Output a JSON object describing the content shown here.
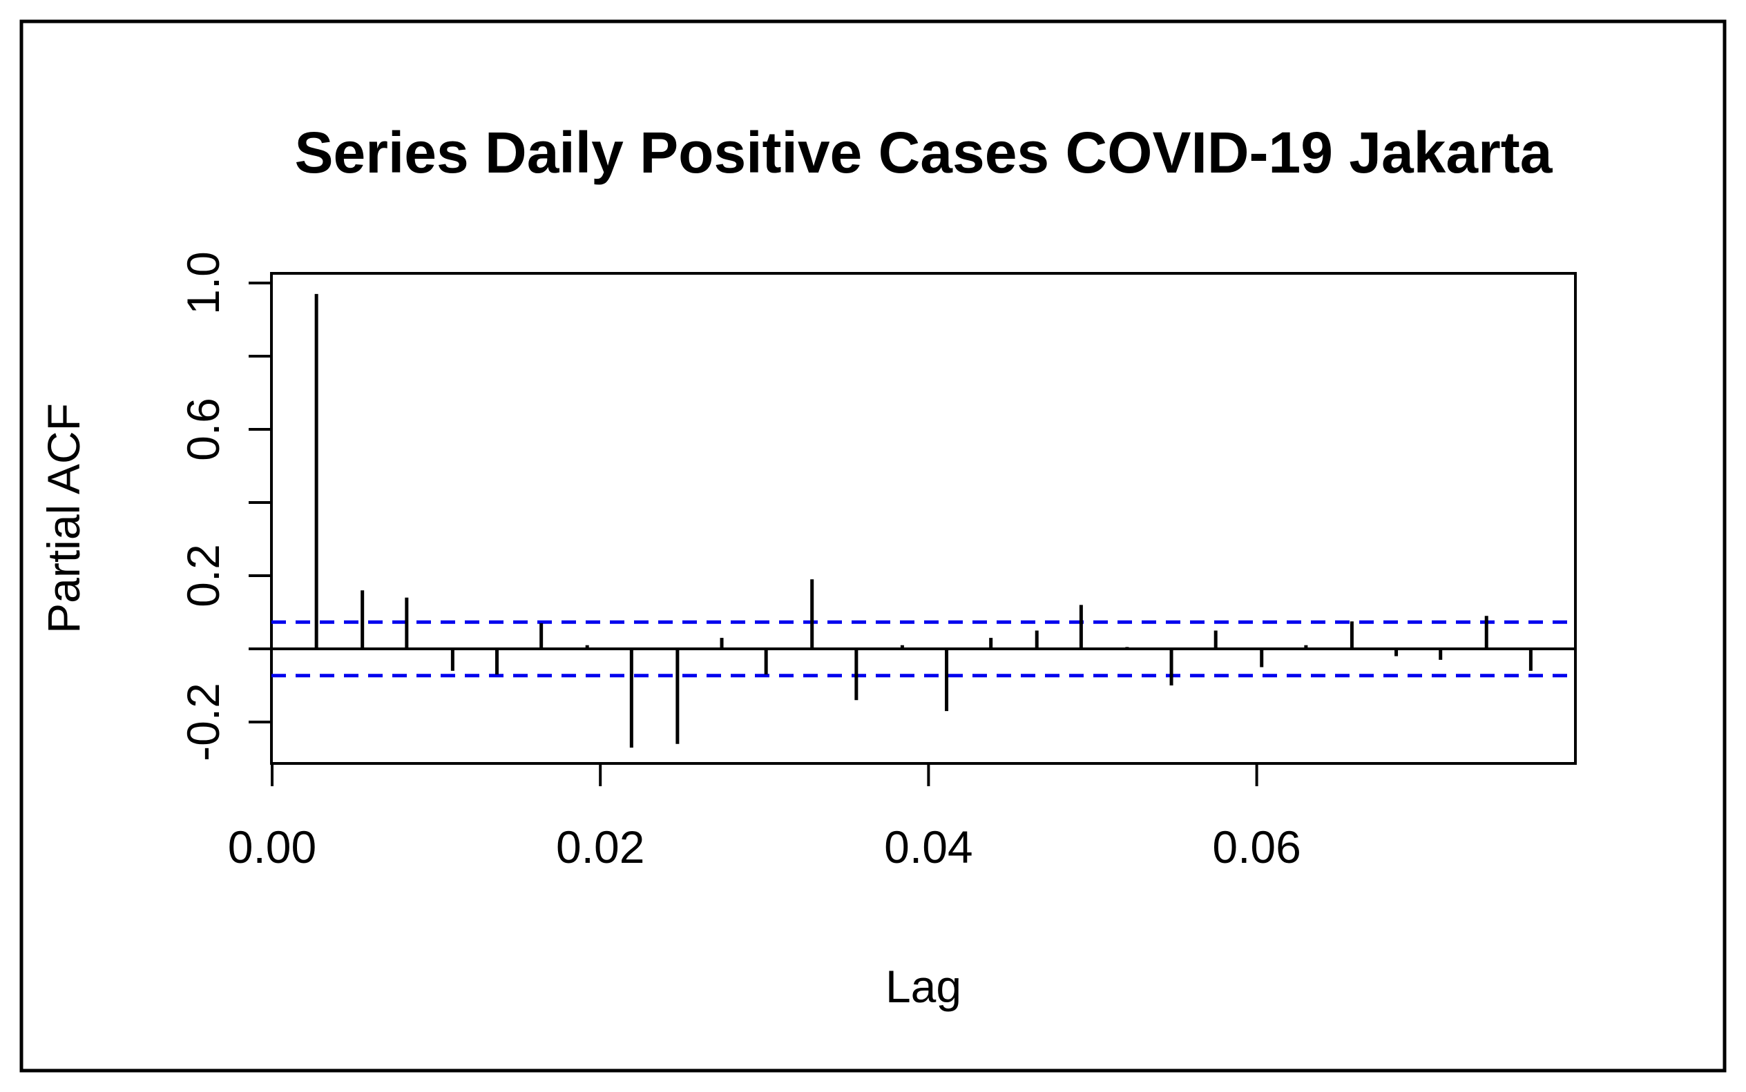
{
  "figure": {
    "title": "Series Daily Positive Cases COVID-19 Jakarta",
    "xlabel": "Lag",
    "ylabel": "Partial ACF"
  },
  "chart_data": {
    "type": "bar",
    "subtype": "pacf-stem-plot",
    "title": "Series Daily Positive Cases COVID-19 Jakarta",
    "xlabel": "Lag",
    "ylabel": "Partial ACF",
    "x": [
      0.0027,
      0.0055,
      0.0082,
      0.011,
      0.0137,
      0.0164,
      0.0192,
      0.0219,
      0.0247,
      0.0274,
      0.0301,
      0.0329,
      0.0356,
      0.0384,
      0.0411,
      0.0438,
      0.0466,
      0.0493,
      0.0521,
      0.0548,
      0.0575,
      0.0603,
      0.063,
      0.0658,
      0.0685,
      0.0712,
      0.074,
      0.0767
    ],
    "values": [
      0.97,
      0.16,
      0.14,
      -0.06,
      -0.07,
      0.07,
      0.01,
      -0.27,
      -0.26,
      0.03,
      -0.07,
      0.19,
      -0.14,
      0.01,
      -0.17,
      0.03,
      0.05,
      0.12,
      0.005,
      -0.1,
      0.05,
      -0.05,
      0.01,
      0.075,
      -0.02,
      -0.03,
      0.09,
      -0.06
    ],
    "confidence_bounds": [
      0.073,
      -0.073
    ],
    "xlim": [
      -0.0002,
      0.0795
    ],
    "ylim": [
      -0.31,
      1.03
    ],
    "xticks": {
      "values": [
        0,
        0.02,
        0.04,
        0.06
      ],
      "labels": [
        "0.00",
        "0.02",
        "0.04",
        "0.06"
      ]
    },
    "yticks": {
      "values": [
        -0.2,
        0,
        0.2,
        0.4,
        0.6,
        0.8,
        1.0
      ],
      "labeled_values": [
        -0.2,
        0.2,
        0.6,
        1.0
      ],
      "labels": [
        "-0.2",
        "0.2",
        "0.6",
        "1.0"
      ]
    },
    "grid": "off",
    "legend": "none",
    "colors": {
      "series": "#000000",
      "confidence_line": "#0000ee",
      "axis": "#000000",
      "frame_border": "#000000",
      "background": "#ffffff"
    }
  }
}
